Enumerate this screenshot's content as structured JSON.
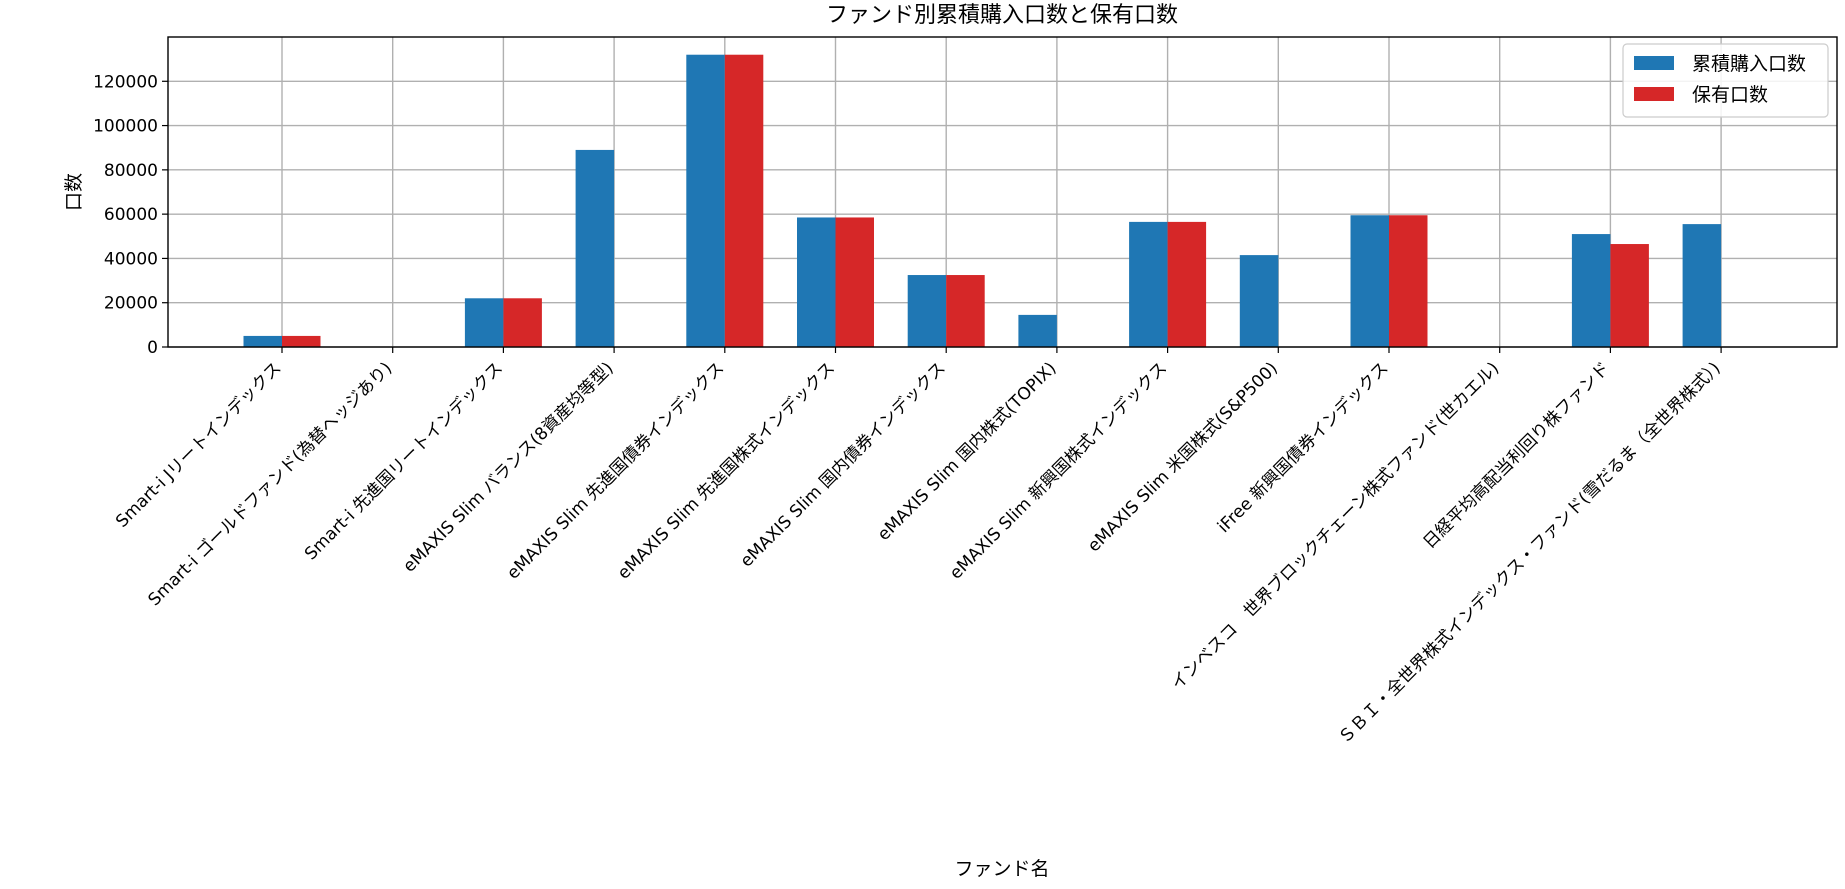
{
  "chart_data": {
    "type": "bar",
    "title": "ファンド別累積購入口数と保有口数",
    "xlabel": "ファンド名",
    "ylabel": "口数",
    "ylim": [
      0,
      140000
    ],
    "yticks": [
      0,
      20000,
      40000,
      60000,
      80000,
      100000,
      120000
    ],
    "ytick_labels": [
      "0",
      "20000",
      "40000",
      "60000",
      "80000",
      "100000",
      "120000"
    ],
    "grid": true,
    "legend_position": "top-right",
    "categories": [
      "Smart-i Jリートインデックス",
      "Smart-i ゴールドファンド(為替ヘッジあり)",
      "Smart-i 先進国リートインデックス",
      "eMAXIS Slim バランス(8資産均等型)",
      "eMAXIS Slim 先進国債券インデックス",
      "eMAXIS Slim 先進国株式インデックス",
      "eMAXIS Slim 国内債券インデックス",
      "eMAXIS Slim 国内株式(TOPIX)",
      "eMAXIS Slim 新興国株式インデックス",
      "eMAXIS Slim 米国株式(S&P500)",
      "iFree 新興国債券インデックス",
      "インベスコ　世界ブロックチェーン株式ファンド(世カエル)",
      "日経平均高配当利回り株ファンド",
      "ＳＢＩ・全世界株式インデックス・ファンド(雪だるま（全世界株式）)"
    ],
    "series": [
      {
        "name": "累積購入口数",
        "color": "#1f77b4",
        "values": [
          5000,
          0,
          22000,
          89000,
          132000,
          58500,
          32500,
          14500,
          56500,
          41500,
          59500,
          0,
          51000,
          55500
        ]
      },
      {
        "name": "保有口数",
        "color": "#d62728",
        "values": [
          5000,
          0,
          22000,
          0,
          132000,
          58500,
          32500,
          0,
          56500,
          0,
          59500,
          0,
          46500,
          0
        ]
      }
    ]
  }
}
